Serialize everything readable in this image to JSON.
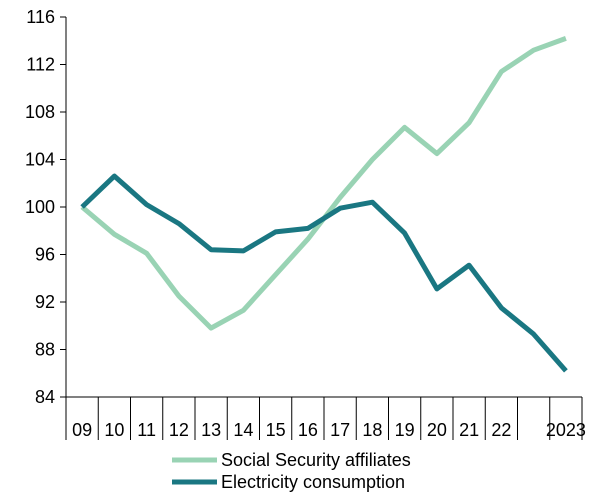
{
  "chart_data": {
    "type": "line",
    "title": "",
    "xlabel": "",
    "ylabel": "",
    "x": [
      "09",
      "10",
      "11",
      "12",
      "13",
      "14",
      "15",
      "16",
      "17",
      "18",
      "19",
      "20",
      "21",
      "22",
      "",
      "2023"
    ],
    "ylim": [
      84,
      116
    ],
    "yticks": [
      84,
      88,
      92,
      96,
      100,
      104,
      108,
      112,
      116
    ],
    "grid": false,
    "legend_position": "bottom",
    "series": [
      {
        "name": "Social Security affiliates",
        "color": "#99d3b4",
        "values": [
          100,
          97.7,
          96.1,
          92.5,
          89.8,
          91.3,
          94.3,
          97.3,
          100.8,
          104.0,
          106.7,
          104.5,
          107.1,
          111.4,
          113.2,
          114.2
        ]
      },
      {
        "name": "Electricity consumption",
        "color": "#1a7782",
        "values": [
          100,
          102.6,
          100.2,
          98.6,
          96.4,
          96.3,
          97.9,
          98.2,
          99.9,
          100.4,
          97.8,
          93.1,
          95.1,
          91.5,
          89.3,
          86.2
        ]
      }
    ]
  }
}
